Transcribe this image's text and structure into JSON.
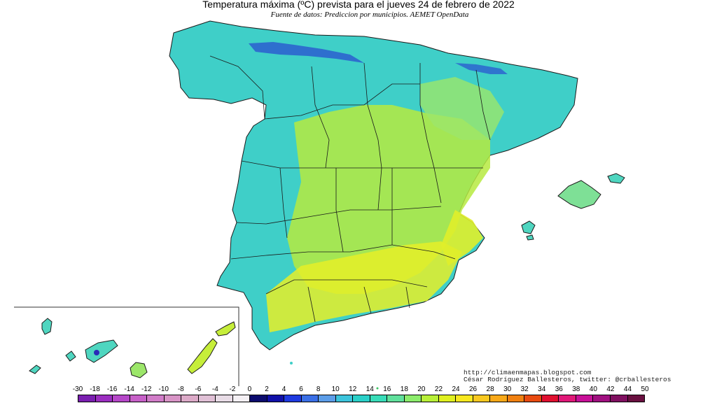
{
  "title": "Temperatura máxima (ºC) prevista para el jueves 24 de febrero de 2022",
  "subtitle": "Fuente de datos: Prediccion por municipios. AEMET OpenData",
  "credits": {
    "blog": "http://climaenmapas.blogspot.com",
    "author": "César Rodríguez Ballesteros, twitter: @crballesteros"
  },
  "legend": {
    "labels": [
      "-30",
      "-18",
      "-16",
      "-14",
      "-12",
      "-10",
      "-8",
      "-6",
      "-4",
      "-2",
      "0",
      "2",
      "4",
      "6",
      "8",
      "10",
      "12",
      "14",
      "16",
      "18",
      "20",
      "22",
      "24",
      "26",
      "28",
      "30",
      "32",
      "34",
      "36",
      "38",
      "40",
      "42",
      "44",
      "50"
    ],
    "colors": [
      "#7a1fb0",
      "#9b2ec0",
      "#b547c8",
      "#c760c8",
      "#d17cc8",
      "#d894c6",
      "#dcaac8",
      "#e0c0d6",
      "#e8dce6",
      "#f4f0f4",
      "#0b0b6e",
      "#1010a8",
      "#1f3ae0",
      "#3a6fe6",
      "#5c9de8",
      "#3cc4dc",
      "#2ad0c8",
      "#38dcb8",
      "#60e09c",
      "#8cec6c",
      "#b8f038",
      "#e0f020",
      "#f8e820",
      "#f8c820",
      "#f8a818",
      "#f08010",
      "#e84a10",
      "#e01030",
      "#e01878",
      "#c81098",
      "#a01080",
      "#801060",
      "#6a1040"
    ]
  },
  "map": {
    "regions": [
      {
        "name": "Península",
        "temperature_class": "mixed"
      },
      {
        "name": "Islas Baleares",
        "temperature_class": "mild"
      },
      {
        "name": "Islas Canarias",
        "temperature_class": "warm"
      }
    ],
    "colors": {
      "cool": "#3fcfc8",
      "mild": "#6ee0a0",
      "warm": "#c6ee3a",
      "hot": "#eef02c",
      "cold_mountain": "#2a4fd0",
      "border": "#222222"
    }
  }
}
